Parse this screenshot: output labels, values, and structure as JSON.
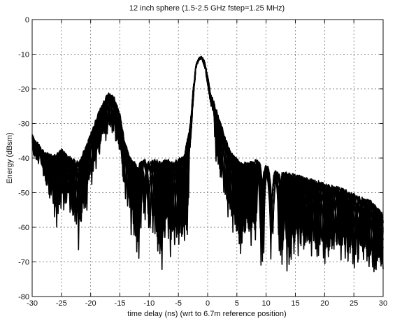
{
  "chart_data": {
    "type": "line",
    "title": "12 inch sphere (1.5-2.5 GHz fstep=1.25 MHz)",
    "xlabel": "time delay (ns) (wrt to 6.7m reference position)",
    "ylabel": "Energy (dBsm)",
    "xlim": [
      -30,
      30
    ],
    "ylim": [
      -80,
      0
    ],
    "xticks": [
      -30,
      -25,
      -20,
      -15,
      -10,
      -5,
      0,
      5,
      10,
      15,
      20,
      25,
      30
    ],
    "yticks": [
      0,
      -10,
      -20,
      -30,
      -40,
      -50,
      -60,
      -70,
      -80
    ],
    "grid": true,
    "legend": "none",
    "series_style": {
      "color": "#000000",
      "count": 16
    },
    "series_envelope": {
      "x": [
        -30,
        -28,
        -26,
        -25,
        -24,
        -22,
        -20.5,
        -19,
        -18,
        -17,
        -16,
        -15,
        -14,
        -13,
        -12,
        -11,
        -10,
        -9,
        -8,
        -7,
        -6,
        -5,
        -4,
        -3,
        -2.5,
        -2,
        -1.5,
        -1,
        -0.5,
        0,
        0.5,
        1,
        2,
        3,
        4,
        5,
        6,
        7,
        8,
        9,
        10,
        12,
        14,
        16,
        18,
        20,
        22,
        24,
        26,
        28,
        30
      ],
      "upper": [
        -33,
        -38,
        -39,
        -37,
        -39,
        -41,
        -35,
        -28,
        -24,
        -21,
        -22,
        -27,
        -36,
        -40,
        -42,
        -40,
        -41,
        -40,
        -41,
        -40,
        -41,
        -40,
        -39,
        -30,
        -20,
        -13,
        -11,
        -10.5,
        -12,
        -16,
        -21,
        -23,
        -28,
        -34,
        -38,
        -40,
        -41,
        -41,
        -40,
        -41,
        -42,
        -44,
        -44,
        -45,
        -46,
        -47,
        -48,
        -49,
        -51,
        -52,
        -56
      ],
      "lower": [
        -38,
        -45,
        -62,
        -58,
        -55,
        -68,
        -55,
        -45,
        -38,
        -34,
        -35,
        -42,
        -55,
        -64,
        -72,
        -60,
        -65,
        -68,
        -80,
        -66,
        -72,
        -70,
        -75,
        -60,
        -40,
        -18,
        -14,
        -14,
        -20,
        -28,
        -35,
        -40,
        -48,
        -56,
        -62,
        -70,
        -72,
        -70,
        -68,
        -72,
        -74,
        -72,
        -76,
        -70,
        -72,
        -76,
        -70,
        -74,
        -72,
        -78,
        -76
      ]
    }
  }
}
